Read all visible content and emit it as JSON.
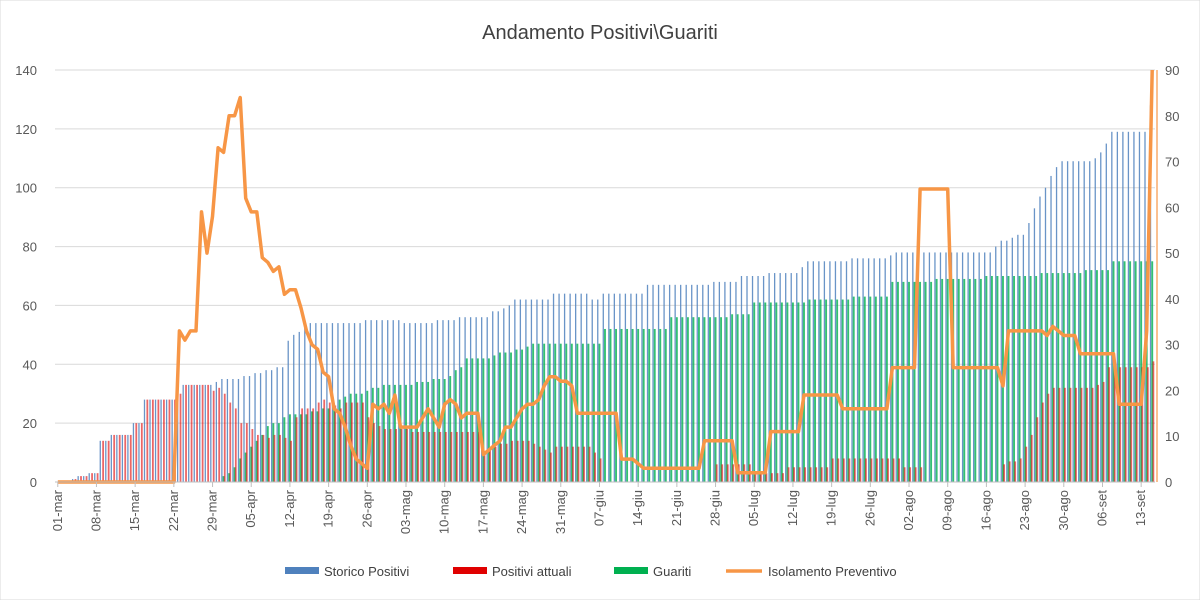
{
  "chart_data": {
    "type": "bar+line",
    "title": "Andamento Positivi\\Guariti",
    "x_tick_labels": [
      "01-mar",
      "08-mar",
      "15-mar",
      "22-mar",
      "29-mar",
      "05-apr",
      "12-apr",
      "19-apr",
      "26-apr",
      "03-mag",
      "10-mag",
      "17-mag",
      "24-mag",
      "31-mag",
      "07-giu",
      "14-giu",
      "21-giu",
      "28-giu",
      "05-lug",
      "12-lug",
      "19-lug",
      "26-lug",
      "02-ago",
      "09-ago",
      "16-ago",
      "23-ago",
      "30-ago",
      "06-set",
      "13-set"
    ],
    "y_left": {
      "min": 0,
      "max": 140,
      "ticks": [
        0,
        20,
        40,
        60,
        80,
        100,
        120,
        140
      ]
    },
    "y_right": {
      "min": 0,
      "max": 90,
      "ticks": [
        0,
        10,
        20,
        30,
        40,
        50,
        60,
        70,
        80,
        90
      ]
    },
    "grid": true,
    "legend_position": "bottom",
    "series": [
      {
        "name": "Storico Positivi",
        "type": "bar",
        "axis": "left",
        "color": "#4f81bd",
        "values": [
          0,
          0,
          0,
          1,
          2,
          2,
          3,
          3,
          14,
          14,
          16,
          16,
          16,
          16,
          20,
          20,
          28,
          28,
          28,
          28,
          28,
          28,
          30,
          33,
          33,
          33,
          33,
          33,
          33,
          34,
          35,
          35,
          35,
          35,
          36,
          36,
          37,
          37,
          38,
          38,
          39,
          39,
          48,
          50,
          51,
          53,
          54,
          54,
          54,
          54,
          54,
          54,
          54,
          54,
          54,
          54,
          55,
          55,
          55,
          55,
          55,
          55,
          55,
          54,
          54,
          54,
          54,
          54,
          54,
          55,
          55,
          55,
          55,
          56,
          56,
          56,
          56,
          56,
          56,
          58,
          58,
          59,
          60,
          62,
          62,
          62,
          62,
          62,
          62,
          62,
          64,
          64,
          64,
          64,
          64,
          64,
          64,
          62,
          62,
          64,
          64,
          64,
          64,
          64,
          64,
          64,
          64,
          67,
          67,
          67,
          67,
          67,
          67,
          67,
          67,
          67,
          67,
          67,
          67,
          68,
          68,
          68,
          68,
          68,
          70,
          70,
          70,
          70,
          70,
          71,
          71,
          71,
          71,
          71,
          71,
          73,
          75,
          75,
          75,
          75,
          75,
          75,
          75,
          75,
          76,
          76,
          76,
          76,
          76,
          76,
          76,
          77,
          78,
          78,
          78,
          78,
          78,
          78,
          78,
          78,
          78,
          78,
          78,
          78,
          78,
          78,
          78,
          78,
          78,
          78,
          80,
          82,
          82,
          83,
          84,
          84,
          88,
          93,
          97,
          100,
          104,
          107,
          109,
          109,
          109,
          109,
          109,
          109,
          110,
          112,
          115,
          119,
          119,
          119,
          119,
          119,
          119,
          119,
          128
        ]
      },
      {
        "name": "Positivi attuali",
        "type": "bar",
        "axis": "left",
        "color": "#e00000",
        "values": [
          0,
          0,
          0,
          1,
          2,
          2,
          3,
          3,
          14,
          14,
          16,
          16,
          16,
          16,
          20,
          20,
          28,
          28,
          28,
          28,
          28,
          28,
          30,
          33,
          33,
          33,
          33,
          33,
          31,
          32,
          30,
          27,
          25,
          20,
          20,
          18,
          16,
          16,
          15,
          16,
          16,
          15,
          14,
          22,
          25,
          25,
          25,
          27,
          28,
          27,
          26,
          25,
          27,
          27,
          27,
          27,
          22,
          20,
          19,
          18,
          18,
          18,
          18,
          18,
          17,
          17,
          17,
          17,
          17,
          17,
          17,
          17,
          17,
          17,
          17,
          17,
          17,
          10,
          11,
          12,
          13,
          13,
          14,
          14,
          14,
          14,
          13,
          12,
          11,
          10,
          12,
          12,
          12,
          12,
          12,
          12,
          12,
          10,
          8,
          0,
          0,
          0,
          0,
          0,
          0,
          0,
          0,
          0,
          0,
          0,
          0,
          0,
          0,
          0,
          0,
          0,
          0,
          0,
          0,
          6,
          6,
          6,
          6,
          6,
          6,
          6,
          3,
          3,
          3,
          3,
          3,
          3,
          5,
          5,
          5,
          5,
          5,
          5,
          5,
          5,
          8,
          8,
          8,
          8,
          8,
          8,
          8,
          8,
          8,
          8,
          8,
          8,
          8,
          5,
          5,
          5,
          5,
          0,
          0,
          0,
          0,
          0,
          0,
          0,
          0,
          0,
          0,
          0,
          0,
          0,
          0,
          6,
          7,
          7,
          8,
          12,
          16,
          22,
          27,
          30,
          32,
          32,
          32,
          32,
          32,
          32,
          32,
          32,
          33,
          34,
          39,
          39,
          39,
          39,
          39,
          39,
          39,
          39,
          41
        ]
      },
      {
        "name": "Guariti",
        "type": "bar",
        "axis": "left",
        "color": "#00b050",
        "values": [
          0,
          0,
          0,
          0,
          0,
          0,
          0,
          0,
          0,
          0,
          0,
          0,
          0,
          0,
          0,
          0,
          0,
          0,
          0,
          0,
          0,
          0,
          0,
          0,
          0,
          0,
          0,
          0,
          0,
          0,
          2,
          3,
          5,
          8,
          10,
          12,
          14,
          16,
          19,
          20,
          20,
          22,
          23,
          23,
          23,
          23,
          24,
          24,
          25,
          25,
          26,
          28,
          29,
          30,
          30,
          30,
          31,
          32,
          32,
          33,
          33,
          33,
          33,
          33,
          33,
          34,
          34,
          34,
          35,
          35,
          35,
          36,
          38,
          39,
          42,
          42,
          42,
          42,
          42,
          43,
          44,
          44,
          44,
          45,
          45,
          46,
          47,
          47,
          47,
          47,
          47,
          47,
          47,
          47,
          47,
          47,
          47,
          47,
          47,
          52,
          52,
          52,
          52,
          52,
          52,
          52,
          52,
          52,
          52,
          52,
          52,
          56,
          56,
          56,
          56,
          56,
          56,
          56,
          56,
          56,
          56,
          56,
          57,
          57,
          57,
          57,
          61,
          61,
          61,
          61,
          61,
          61,
          61,
          61,
          61,
          61,
          62,
          62,
          62,
          62,
          62,
          62,
          62,
          62,
          63,
          63,
          63,
          63,
          63,
          63,
          63,
          68,
          68,
          68,
          68,
          68,
          68,
          68,
          68,
          69,
          69,
          69,
          69,
          69,
          69,
          69,
          69,
          69,
          70,
          70,
          70,
          70,
          70,
          70,
          70,
          70,
          70,
          70,
          71,
          71,
          71,
          71,
          71,
          71,
          71,
          71,
          72,
          72,
          72,
          72,
          72,
          75,
          75,
          75,
          75,
          75,
          75,
          75,
          75
        ]
      },
      {
        "name": "Isolamento Preventivo",
        "type": "line",
        "axis": "right",
        "color": "#f79646",
        "values": [
          0,
          0,
          0,
          0,
          0,
          0,
          0,
          0,
          0,
          0,
          0,
          0,
          0,
          0,
          0,
          0,
          0,
          0,
          0,
          0,
          0,
          0,
          33,
          31,
          33,
          33,
          59,
          50,
          58,
          73,
          72,
          80,
          80,
          84,
          62,
          59,
          59,
          49,
          48,
          46,
          47,
          41,
          42,
          42,
          38,
          33,
          30,
          29,
          24,
          23,
          16,
          15,
          12,
          8,
          5,
          4,
          3,
          17,
          16,
          17,
          15,
          19,
          12,
          12,
          12,
          12,
          14,
          16,
          14,
          12,
          17,
          18,
          17,
          14,
          15,
          15,
          15,
          6,
          7,
          8,
          9,
          12,
          12,
          14,
          16,
          17,
          17,
          18,
          21,
          23,
          23,
          22,
          22,
          21,
          15,
          15,
          15,
          15,
          15,
          15,
          15,
          15,
          5,
          5,
          5,
          4,
          3,
          3,
          3,
          3,
          3,
          3,
          3,
          3,
          3,
          3,
          3,
          9,
          9,
          9,
          9,
          9,
          9,
          2,
          2,
          2,
          2,
          2,
          2,
          11,
          11,
          11,
          11,
          11,
          11,
          19,
          19,
          19,
          19,
          19,
          19,
          19,
          16,
          16,
          16,
          16,
          16,
          16,
          16,
          16,
          16,
          25,
          25,
          25,
          25,
          25,
          64,
          64,
          64,
          64,
          64,
          64,
          25,
          25,
          25,
          25,
          25,
          25,
          25,
          25,
          25,
          21,
          33,
          33,
          33,
          33,
          33,
          33,
          33,
          32,
          34,
          33,
          32,
          32,
          32,
          28,
          28,
          28,
          28,
          28,
          28,
          28,
          17,
          17,
          17,
          17,
          17,
          33,
          90
        ]
      }
    ]
  }
}
